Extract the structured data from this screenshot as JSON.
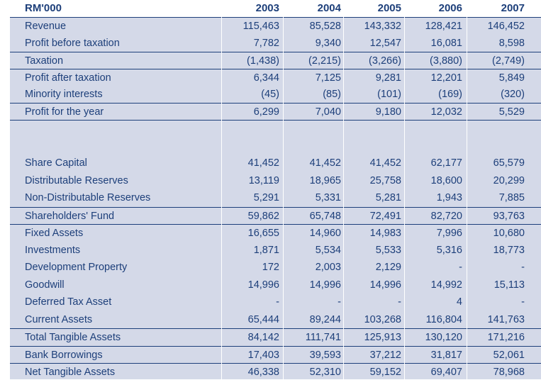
{
  "header": {
    "label": "RM'000",
    "years": [
      "2003",
      "2004",
      "2005",
      "2006",
      "2007"
    ]
  },
  "income_rows": [
    {
      "label": "Revenue",
      "values": [
        "115,463",
        "85,528",
        "143,332",
        "128,421",
        "146,452"
      ]
    },
    {
      "label": "Profit before taxation",
      "values": [
        "7,782",
        "9,340",
        "12,547",
        "16,081",
        "8,598"
      ]
    },
    {
      "label": "Taxation",
      "values": [
        "(1,438)",
        "(2,215)",
        "(3,266)",
        "(3,880)",
        "(2,749)"
      ]
    },
    {
      "label": "Profit after taxation",
      "values": [
        "6,344",
        "7,125",
        "9,281",
        "12,201",
        "5,849"
      ]
    },
    {
      "label": "Minority interests",
      "values": [
        "(45)",
        "(85)",
        "(101)",
        "(169)",
        "(320)"
      ]
    },
    {
      "label": "Profit for the year",
      "values": [
        "6,299",
        "7,040",
        "9,180",
        "12,032",
        "5,529"
      ]
    }
  ],
  "balance_rows": [
    {
      "label": "Share Capital",
      "values": [
        "41,452",
        "41,452",
        "41,452",
        "62,177",
        "65,579"
      ]
    },
    {
      "label": "Distributable Reserves",
      "values": [
        "13,119",
        "18,965",
        "25,758",
        "18,600",
        "20,299"
      ]
    },
    {
      "label": "Non-Distributable Reserves",
      "values": [
        "5,291",
        "5,331",
        "5,281",
        "1,943",
        "7,885"
      ]
    },
    {
      "label": "Shareholders' Fund",
      "values": [
        "59,862",
        "65,748",
        "72,491",
        "82,720",
        "93,763"
      ]
    },
    {
      "label": "Fixed Assets",
      "values": [
        "16,655",
        "14,960",
        "14,983",
        "7,996",
        "10,680"
      ]
    },
    {
      "label": "Investments",
      "values": [
        "1,871",
        "5,534",
        "5,533",
        "5,316",
        "18,773"
      ]
    },
    {
      "label": "Development Property",
      "values": [
        "172",
        "2,003",
        "2,129",
        "-",
        "-"
      ]
    },
    {
      "label": "Goodwill",
      "values": [
        "14,996",
        "14,996",
        "14,996",
        "14,992",
        "15,113"
      ]
    },
    {
      "label": "Deferred Tax Asset",
      "values": [
        "-",
        "-",
        "-",
        "4",
        "-"
      ]
    },
    {
      "label": "Current Assets",
      "values": [
        "65,444",
        "89,244",
        "103,268",
        "116,804",
        "141,763"
      ]
    },
    {
      "label": "Total Tangible Assets",
      "values": [
        "84,142",
        "111,741",
        "125,913",
        "130,120",
        "171,216"
      ]
    },
    {
      "label": "Bank Borrowings",
      "values": [
        "17,403",
        "39,593",
        "37,212",
        "31,817",
        "52,061"
      ]
    },
    {
      "label": "Net Tangible Assets",
      "values": [
        "46,338",
        "52,310",
        "59,152",
        "69,407",
        "78,968"
      ]
    }
  ]
}
